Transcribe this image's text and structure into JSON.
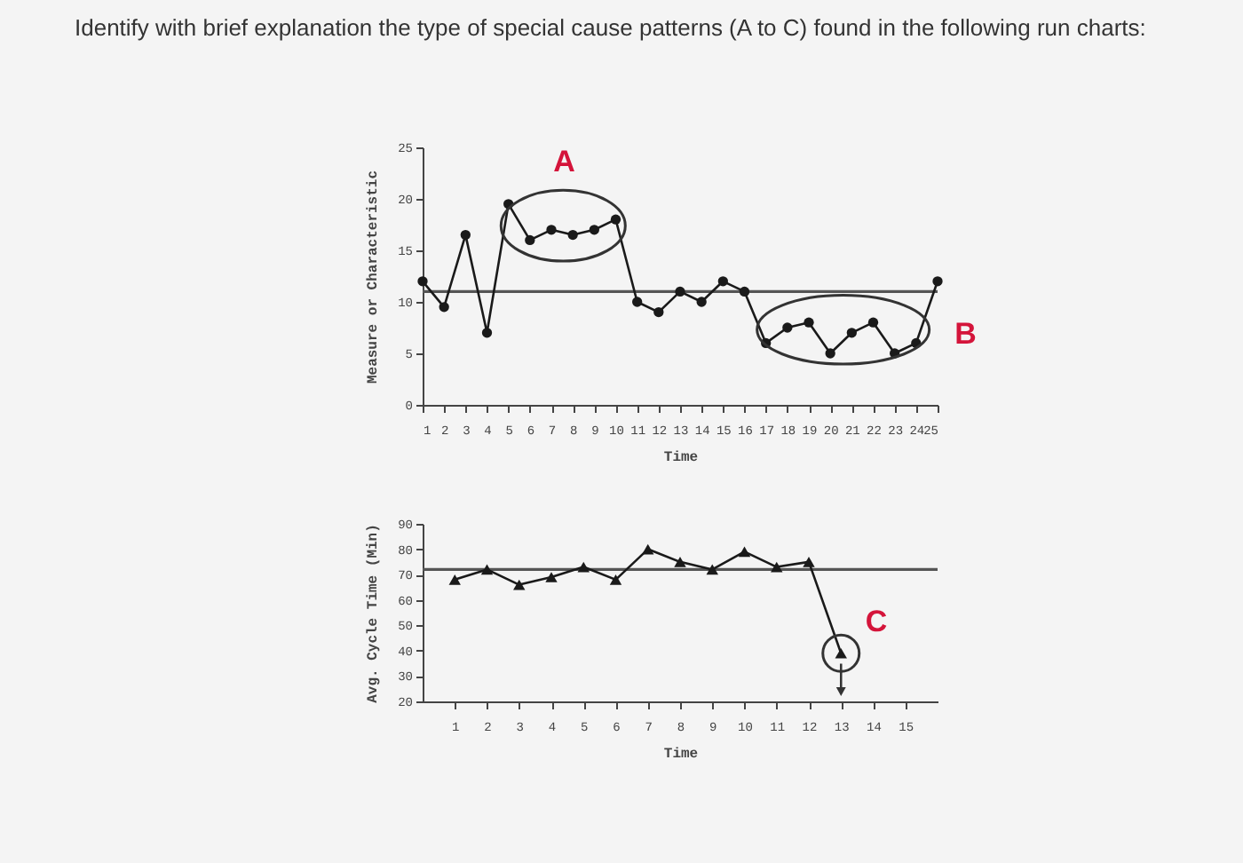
{
  "chart_data": [
    {
      "type": "line",
      "title": "Identify with brief explanation the type of special cause patterns (A to C) found in the following run charts:",
      "xlabel": "Time",
      "ylabel": "Measure or Characteristic",
      "x": [
        1,
        2,
        3,
        4,
        5,
        6,
        7,
        8,
        9,
        10,
        11,
        12,
        13,
        14,
        15,
        16,
        17,
        18,
        19,
        20,
        21,
        22,
        23,
        24,
        25
      ],
      "series": [
        {
          "color": "#1a1a1a",
          "values": [
            12,
            9.5,
            16.5,
            7,
            19.5,
            16,
            17,
            16.5,
            17,
            18,
            10,
            9,
            11,
            10,
            12,
            11,
            6,
            7.5,
            8,
            5,
            7,
            8,
            5,
            6,
            12
          ]
        }
      ],
      "xlim": [
        1,
        25
      ],
      "xticks": [
        1,
        2,
        3,
        4,
        5,
        6,
        7,
        8,
        9,
        10,
        11,
        12,
        13,
        14,
        15,
        16,
        17,
        18,
        19,
        20,
        21,
        22,
        23,
        24,
        25
      ],
      "ylim": [
        0,
        25
      ],
      "yticks": [
        0,
        5,
        10,
        15,
        20,
        25
      ],
      "ref_lines": [
        {
          "axis": "y",
          "value": 11,
          "color": "#555555"
        }
      ],
      "annotations": [
        "A",
        "B"
      ],
      "marker": "circle",
      "grid": false
    },
    {
      "type": "line",
      "xlabel": "Time",
      "ylabel": "Avg. Cycle Time (Min)",
      "x": [
        1,
        2,
        3,
        4,
        5,
        6,
        7,
        8,
        9,
        10,
        11,
        12,
        13
      ],
      "series": [
        {
          "color": "#1a1a1a",
          "values": [
            68,
            72,
            66,
            69,
            73,
            68,
            80,
            75,
            72,
            79,
            73,
            75,
            39
          ]
        }
      ],
      "xlim": [
        0,
        16
      ],
      "xticks": [
        1,
        2,
        3,
        4,
        5,
        6,
        7,
        8,
        9,
        10,
        11,
        12,
        13,
        14,
        15
      ],
      "ylim": [
        20,
        90
      ],
      "yticks": [
        20,
        30,
        40,
        50,
        60,
        70,
        80,
        90
      ],
      "ref_lines": [
        {
          "axis": "y",
          "value": 72,
          "color": "#555555"
        }
      ],
      "annotations": [
        "C"
      ],
      "marker": "triangle",
      "grid": false
    }
  ]
}
